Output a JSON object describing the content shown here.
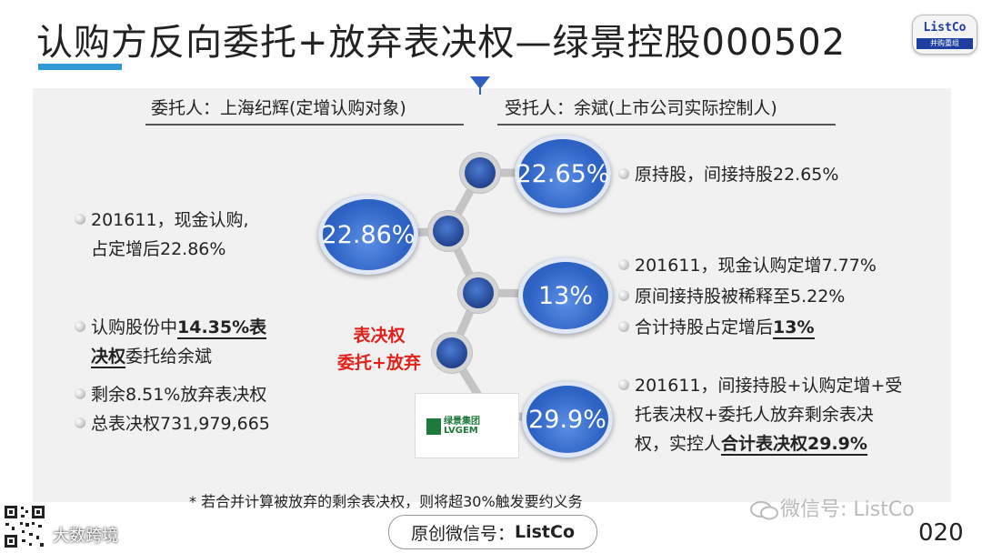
{
  "header": {
    "title": "认购方反向委托+放弃表决权—绿景控股000502",
    "logo_top": "ListCo",
    "logo_bottom": "并购重组"
  },
  "diagram": {
    "left_header": "委托人：上海纪辉(定增认购对象)",
    "right_header": "受托人：余斌(上市公司实际控制人)",
    "circles": {
      "c1": "22.65%",
      "c2": "22.86%",
      "c3": "13%",
      "c4": "29.9%"
    },
    "red_label": {
      "line1": "表决权",
      "line2": "委托+放弃"
    },
    "left_bullets": {
      "b1_line1": "201611，现金认购,",
      "b1_line2": "占定增后22.86%",
      "b2_line1_pre": "认购股份中",
      "b2_line1_bold": "14.35%表",
      "b2_line2_bold": "决权",
      "b2_line2_post": "委托给余斌",
      "b3": "剩余8.51%放弃表决权",
      "b4": "总表决权731,979,665"
    },
    "right_bullets": {
      "r1": "原持股，间接持股22.65%",
      "r2": "201611，现金认购定增7.77%",
      "r3": "原间接持股被稀释至5.22%",
      "r4_pre": "合计持股占定增后",
      "r4_bold": "13%",
      "r5_line1": "201611，间接持股+认购定增+受",
      "r5_line2": "托表决权+委托人放弃剩余表决",
      "r5_line3_pre": "权，实控人",
      "r5_line3_bold": "合计表决权29.9%"
    },
    "company_logo": {
      "cn": "绿景集团",
      "en": "LVGEM"
    }
  },
  "footer": {
    "footnote": "* 若合并计算被放弃的剩余表决权，则将超30%触发要约义务",
    "wechat_watermark": "微信号: ListCo",
    "original_label": "原创微信号：",
    "original_id": "ListCo",
    "page_number": "020",
    "corner_watermark": "大数跨境"
  },
  "colors": {
    "accent_blue": "#2f9ad6",
    "circle_blue": "#2e63c6",
    "red": "#e0221b"
  }
}
